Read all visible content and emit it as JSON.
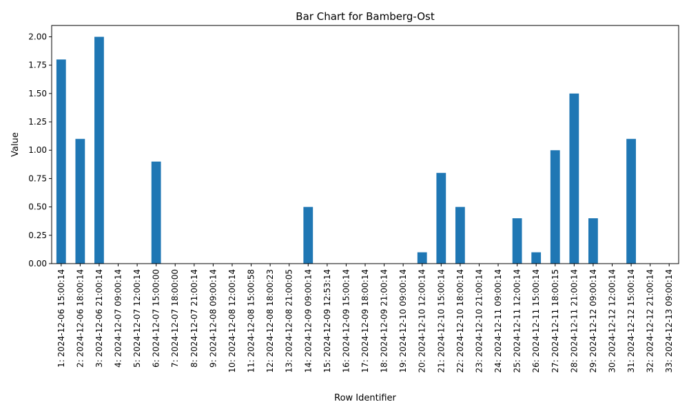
{
  "chart_data": {
    "type": "bar",
    "title": "Bar Chart for Bamberg-Ost",
    "xlabel": "Row Identifier",
    "ylabel": "Value",
    "ylim": [
      0,
      2.1
    ],
    "yticks": [
      "0.00",
      "0.25",
      "0.50",
      "0.75",
      "1.00",
      "1.25",
      "1.50",
      "1.75",
      "2.00"
    ],
    "bar_color": "#1f77b4",
    "grid": false,
    "legend": "none",
    "categories": [
      "1: 2024-12-06 15:00:14",
      "2: 2024-12-06 18:00:14",
      "3: 2024-12-06 21:00:14",
      "4: 2024-12-07 09:00:14",
      "5: 2024-12-07 12:00:14",
      "6: 2024-12-07 15:00:00",
      "7: 2024-12-07 18:00:00",
      "8: 2024-12-07 21:00:14",
      "9: 2024-12-08 09:00:14",
      "10: 2024-12-08 12:00:14",
      "11: 2024-12-08 15:00:58",
      "12: 2024-12-08 18:00:23",
      "13: 2024-12-08 21:00:05",
      "14: 2024-12-09 09:00:14",
      "15: 2024-12-09 12:53:14",
      "16: 2024-12-09 15:00:14",
      "17: 2024-12-09 18:00:14",
      "18: 2024-12-09 21:00:14",
      "19: 2024-12-10 09:00:14",
      "20: 2024-12-10 12:00:14",
      "21: 2024-12-10 15:00:14",
      "22: 2024-12-10 18:00:14",
      "23: 2024-12-10 21:00:14",
      "24: 2024-12-11 09:00:14",
      "25: 2024-12-11 12:00:14",
      "26: 2024-12-11 15:00:14",
      "27: 2024-12-11 18:00:15",
      "28: 2024-12-11 21:00:14",
      "29: 2024-12-12 09:00:14",
      "30: 2024-12-12 12:00:14",
      "31: 2024-12-12 15:00:14",
      "32: 2024-12-12 21:00:14",
      "33: 2024-12-13 09:00:14"
    ],
    "values": [
      1.8,
      1.1,
      2.0,
      0,
      0,
      0.9,
      0,
      0,
      0,
      0,
      0,
      0,
      0,
      0.5,
      0,
      0,
      0,
      0,
      0,
      0.1,
      0.8,
      0.5,
      0,
      0,
      0.4,
      0.1,
      1.0,
      1.5,
      0.4,
      0,
      1.1,
      0,
      0
    ]
  }
}
